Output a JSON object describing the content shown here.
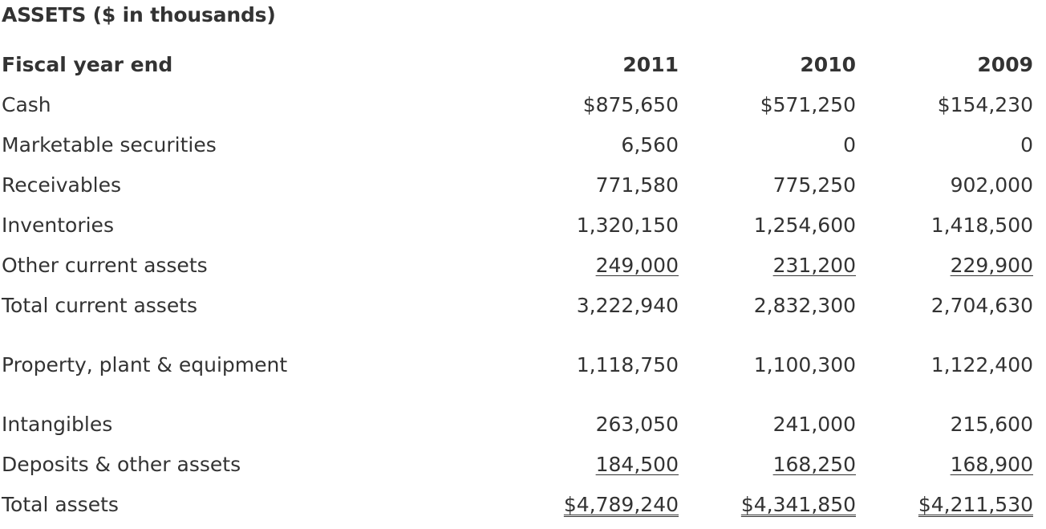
{
  "title": "ASSETS ($ in thousands)",
  "header": {
    "label": "Fiscal year end",
    "years": [
      "2011",
      "2010",
      "2009"
    ]
  },
  "rows": [
    {
      "label": "Cash",
      "values": [
        "$875,650",
        "$571,250",
        "$154,230"
      ]
    },
    {
      "label": "Marketable securities",
      "values": [
        "6,560",
        "0",
        "0"
      ]
    },
    {
      "label": "Receivables",
      "values": [
        "771,580",
        "775,250",
        "902,000"
      ]
    },
    {
      "label": "Inventories",
      "values": [
        "1,320,150",
        "1,254,600",
        "1,418,500"
      ]
    },
    {
      "label": "Other current assets",
      "values": [
        "249,000",
        "231,200",
        "229,900"
      ]
    },
    {
      "label": "Total current assets",
      "values": [
        "3,222,940",
        "2,832,300",
        "2,704,630"
      ]
    },
    {
      "label": "Property, plant & equipment",
      "values": [
        "1,118,750",
        "1,100,300",
        "1,122,400"
      ]
    },
    {
      "label": "Intangibles",
      "values": [
        "263,050",
        "241,000",
        "215,600"
      ]
    },
    {
      "label": "Deposits & other assets",
      "values": [
        "184,500",
        "168,250",
        "168,900"
      ]
    },
    {
      "label": "Total assets",
      "values": [
        "$4,789,240",
        "$4,341,850",
        "$4,211,530"
      ]
    }
  ]
}
